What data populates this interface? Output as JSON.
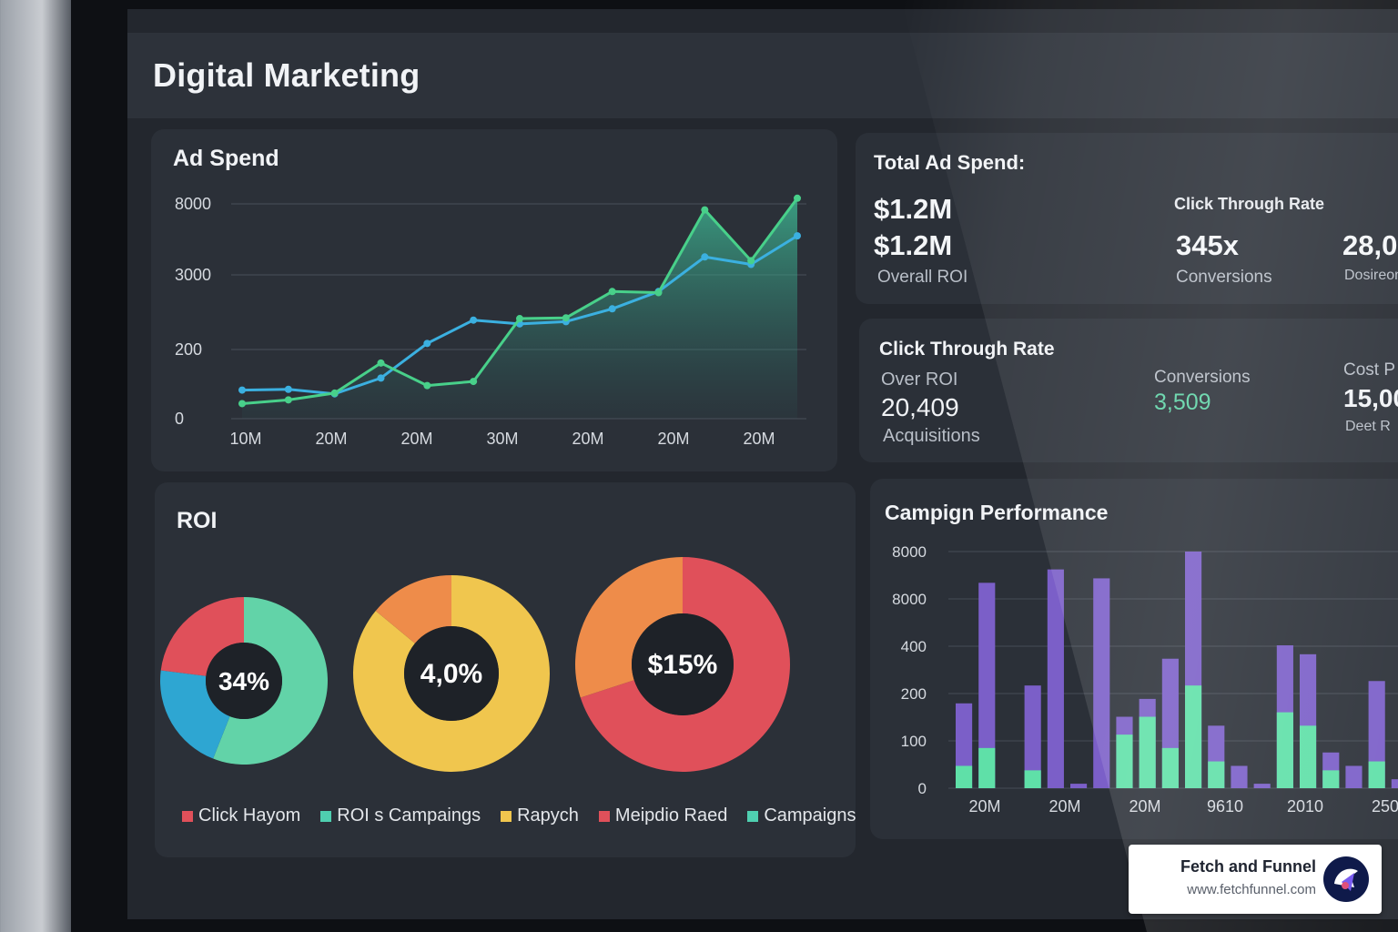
{
  "header": {
    "title": "Digital Marketing"
  },
  "ad_spend": {
    "title": "Ad Spend",
    "chart_data": {
      "type": "line",
      "title": "Ad Spend",
      "y_tick_labels": [
        "0",
        "200",
        "3000",
        "8000"
      ],
      "x_tick_labels": [
        "10M",
        "20M",
        "20M",
        "30M",
        "20M",
        "20M",
        "20M"
      ],
      "grid": true,
      "series": [
        {
          "color": "#3bb0e0",
          "values": [
            0.76,
            0.78,
            0.66,
            1.08,
            2.0,
            2.62,
            2.52,
            2.58,
            2.92,
            3.38,
            4.3,
            4.1,
            4.86
          ]
        },
        {
          "color": "#48d08a",
          "values": [
            0.4,
            0.5,
            0.68,
            1.48,
            0.88,
            0.99,
            2.66,
            2.68,
            3.38,
            3.35,
            5.55,
            4.2,
            5.86
          ]
        }
      ]
    }
  },
  "totals": {
    "title": "Total Ad Spend:",
    "value1": "$1.2M",
    "value2": "$1.2M",
    "label1": "Overall ROI",
    "ctr_label": "Click Through Rate",
    "ctr_value": "345x",
    "ctr_sub": "Conversions",
    "extra_value": "28,0",
    "extra_label": "Dosireon"
  },
  "ctr_card": {
    "title": "Click Through Rate",
    "sub_label": "Over ROI",
    "value": "20,409",
    "value_label": "Acquisitions",
    "conv_label": "Conversions",
    "conv_value": "3,509",
    "cost_label": "Cost P",
    "cost_value": "15,00",
    "cost_sub": "Deet R"
  },
  "roi": {
    "title": "ROI",
    "chart_data": [
      {
        "type": "pie",
        "center_label": "34%",
        "slices": [
          {
            "value": 56,
            "color": "#62d3a8"
          },
          {
            "value": 21,
            "color": "#2ea6d2"
          },
          {
            "value": 23,
            "color": "#e0505a"
          }
        ]
      },
      {
        "type": "pie",
        "center_label": "4,0%",
        "slices": [
          {
            "value": 86,
            "color": "#f0c64e"
          },
          {
            "value": 14,
            "color": "#ee8c4a"
          }
        ]
      },
      {
        "type": "pie",
        "center_label": "$15%",
        "slices": [
          {
            "value": 70,
            "color": "#e0505a"
          },
          {
            "value": 30,
            "color": "#ee8c4a"
          }
        ]
      }
    ],
    "legend": [
      {
        "label": "Click Hayom",
        "color": "#e0505a"
      },
      {
        "label": "ROI s Campaings",
        "color": "#4fcfb0"
      },
      {
        "label": "Rapych",
        "color": "#f0c64e"
      },
      {
        "label": "Meipdio Raed",
        "color": "#e0505a"
      },
      {
        "label": "Campaigns",
        "color": "#4fcfb0"
      }
    ]
  },
  "campaign": {
    "title": "Campign Performance",
    "chart_data": {
      "type": "bar",
      "title": "Campign Performance",
      "y_tick_labels": [
        "0",
        "100",
        "200",
        "400",
        "8000",
        "8000"
      ],
      "x_tick_labels": [
        "20M",
        "20M",
        "20M",
        "9610",
        "2010",
        "250"
      ],
      "series": [
        {
          "color": "#7b5fc8",
          "values": [
            1.9,
            4.6,
            0.0,
            2.3,
            4.9,
            0.1,
            4.7,
            1.6,
            2.0,
            2.9,
            5.3,
            1.4,
            0.5,
            0.1,
            3.2,
            3.0,
            0.8,
            0.5,
            2.4,
            0.2
          ]
        },
        {
          "color": "#5fe0a8",
          "values": [
            0.5,
            0.9,
            0.0,
            0.4,
            0.0,
            0.0,
            0.0,
            1.2,
            1.6,
            0.9,
            2.3,
            0.6,
            0.0,
            0.0,
            1.7,
            1.4,
            0.4,
            0.0,
            0.6,
            0.0
          ]
        }
      ]
    }
  },
  "brand": {
    "name": "Fetch and Funnel",
    "url": "www.fetchfunnel.com",
    "logo_icon": "paw-cursor-icon"
  }
}
